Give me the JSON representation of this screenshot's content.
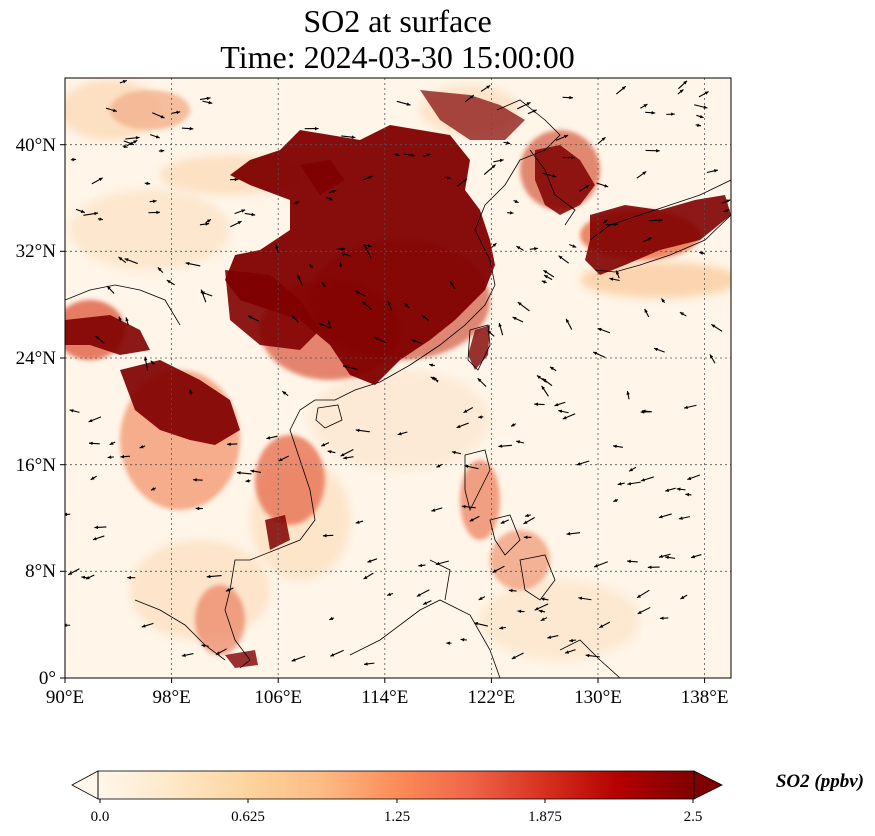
{
  "title": {
    "line1": "SO2 at surface",
    "line2": "Time: 2024-03-30 15:00:00"
  },
  "map": {
    "lon_range": [
      90,
      140
    ],
    "lat_range": [
      0,
      45
    ],
    "x_ticks": [
      "90°E",
      "98°E",
      "106°E",
      "114°E",
      "122°E",
      "130°E",
      "138°E"
    ],
    "y_ticks": [
      "0°",
      "8°N",
      "16°N",
      "24°N",
      "32°N",
      "40°N"
    ],
    "colormap": "OrRd",
    "gridlines": "dotted",
    "overlay": "wind vectors"
  },
  "colorbar": {
    "label": "SO2 (ppbv)",
    "ticks": [
      "0.0",
      "0.625",
      "1.25",
      "1.875",
      "2.5"
    ],
    "colors": [
      "#fff7ec",
      "#fee8c8",
      "#fdd49e",
      "#fdbb84",
      "#fc8d59",
      "#ef6548",
      "#d7301f",
      "#b30000",
      "#7f0000"
    ]
  }
}
